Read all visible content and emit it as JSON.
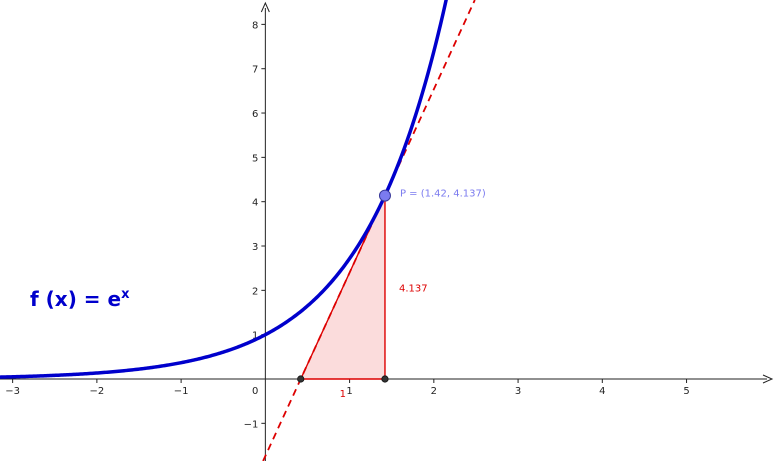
{
  "chart_data": {
    "type": "line",
    "title": "",
    "xlabel": "",
    "ylabel": "",
    "xlim": [
      -3.15,
      6.05
    ],
    "ylim": [
      -1.85,
      8.55
    ],
    "x_ticks": [
      -3,
      -2,
      -1,
      1,
      2,
      3,
      4,
      5
    ],
    "y_ticks": [
      -1,
      1,
      2,
      3,
      4,
      5,
      6,
      7,
      8
    ],
    "origin_label": "0",
    "grid": false,
    "function": {
      "expression": "e^x",
      "label_main": "f (x) = e",
      "label_sup": "x",
      "color": "#0000cc"
    },
    "point": {
      "x": 1.42,
      "y": 4.137,
      "label": "P = (1.42, 4.137)",
      "color": "#7b7bef"
    },
    "tangent_line": {
      "slope": 4.137,
      "color": "#dd0000",
      "style": "dashed"
    },
    "slope_triangle": {
      "base_start_x": 0.42,
      "base_end_x": 1.42,
      "run_label": "1",
      "rise_label": "4.137",
      "fill_color": "#fbdcdc",
      "edge_color": "#dd0000"
    }
  }
}
